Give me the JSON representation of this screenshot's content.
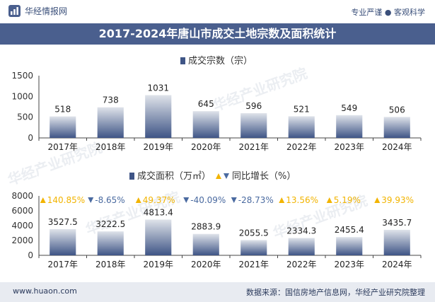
{
  "header": {
    "brand": "华经情报网",
    "tagline": "专业严谨 ● 客观科学",
    "title": "2017-2024年唐山市成交土地宗数及面积统计"
  },
  "footer": {
    "url": "www.huaon.com",
    "source": "数据来源：国信房地产信息网，华经产业研究院整理"
  },
  "watermark": "华经产业研究院",
  "colors": {
    "title_bar": "#4a5f8e",
    "bar_top": "#dfe3ea",
    "bar_bottom": "#3f5586",
    "up": "#f2b400",
    "down": "#4a6aa0"
  },
  "chart_data": [
    {
      "type": "bar",
      "legend": [
        "成交宗数（宗）"
      ],
      "categories": [
        "2017年",
        "2018年",
        "2019年",
        "2020年",
        "2021年",
        "2022年",
        "2023年",
        "2024年"
      ],
      "series": [
        {
          "name": "成交宗数（宗）",
          "values": [
            518,
            738,
            1031,
            645,
            596,
            521,
            549,
            506
          ]
        }
      ],
      "ylim": [
        0,
        1500
      ],
      "yticks": [
        0,
        500,
        1000,
        1500
      ],
      "grid": false
    },
    {
      "type": "bar",
      "legend": [
        "成交面积（万㎡）",
        "同比增长（%）"
      ],
      "categories": [
        "2017年",
        "2018年",
        "2019年",
        "2020年",
        "2021年",
        "2022年",
        "2023年",
        "2024年"
      ],
      "series": [
        {
          "name": "成交面积（万㎡）",
          "values": [
            3527.5,
            3222.5,
            4813.4,
            2883.9,
            2055.5,
            2334.3,
            2455.4,
            3435.7
          ]
        },
        {
          "name": "同比增长（%）",
          "values": [
            "140.85%",
            "-8.65%",
            "49.37%",
            "-40.09%",
            "-28.73%",
            "13.56%",
            "5.19%",
            "39.93%"
          ]
        }
      ],
      "ylim": [
        0,
        8000
      ],
      "yticks": [
        0,
        2000,
        4000,
        6000,
        8000
      ],
      "grid": false
    }
  ]
}
